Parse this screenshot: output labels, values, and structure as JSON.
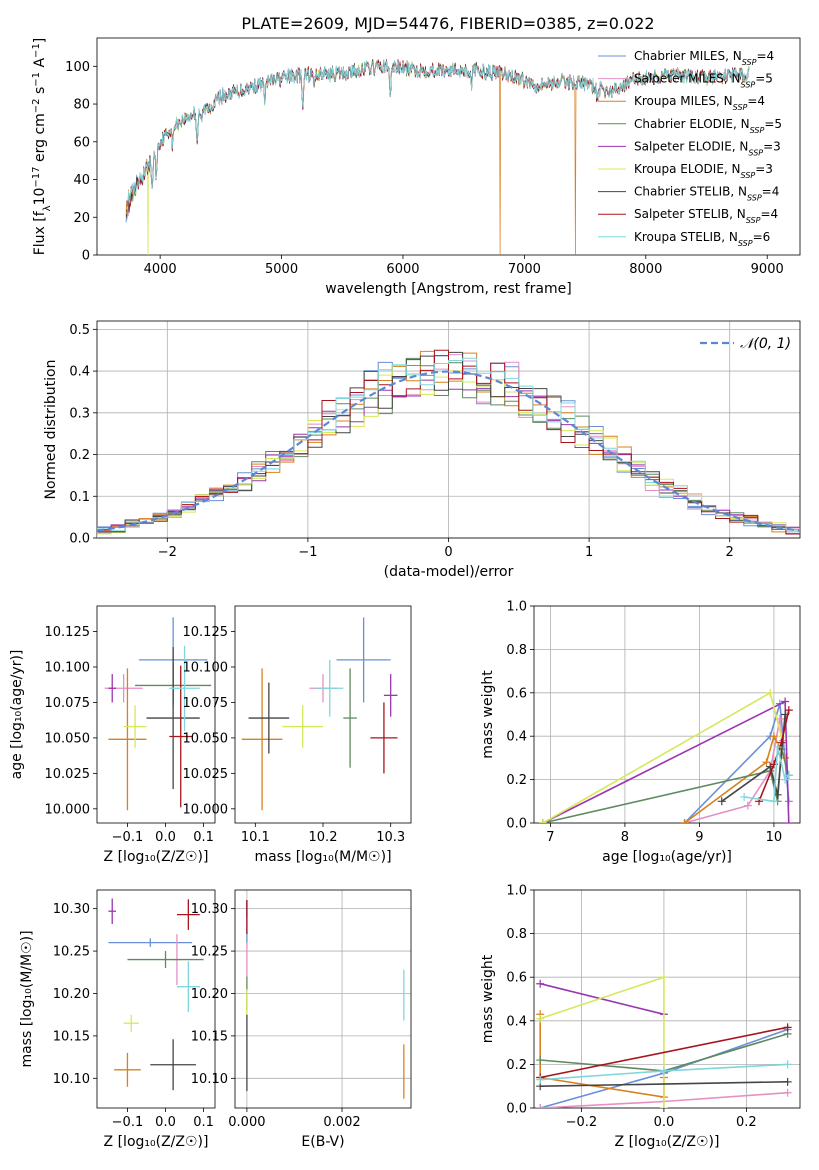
{
  "colors": [
    "#6a8fd8",
    "#e58fc4",
    "#d9801f",
    "#5f8a5f",
    "#9a35b0",
    "#d7e85a",
    "#454545",
    "#a8141c",
    "#7fd6dd"
  ],
  "chart_data": [
    {
      "id": "spectrum",
      "type": "line",
      "title": "PLATE=2609, MJD=54476, FIBERID=0385, z=0.022",
      "xlabel": "wavelength [Angstrom, rest frame]",
      "ylabel_parts": [
        "Flux [f",
        "λ",
        "10",
        "−17",
        " erg cm",
        "−2",
        " s",
        "−1",
        " A",
        "−1",
        "]"
      ],
      "xlim": [
        3480,
        9270
      ],
      "ylim": [
        0,
        115
      ],
      "xticks": [
        "4000",
        "5000",
        "6000",
        "7000",
        "8000",
        "9000"
      ],
      "yticks": [
        "0",
        "20",
        "40",
        "60",
        "80",
        "100"
      ],
      "legend_position": "upper right",
      "series": [
        {
          "name_parts": [
            "Chabrier MILES, N",
            "SSP",
            "=4"
          ]
        },
        {
          "name_parts": [
            "Salpeter MILES, N",
            "SSP",
            "=5"
          ]
        },
        {
          "name_parts": [
            "Kroupa MILES, N",
            "SSP",
            "=4"
          ]
        },
        {
          "name_parts": [
            "Chabrier ELODIE, N",
            "SSP",
            "=5"
          ]
        },
        {
          "name_parts": [
            "Salpeter ELODIE, N",
            "SSP",
            "=3"
          ]
        },
        {
          "name_parts": [
            "Kroupa ELODIE, N",
            "SSP",
            "=3"
          ]
        },
        {
          "name_parts": [
            "Chabrier STELIB, N",
            "SSP",
            "=4"
          ]
        },
        {
          "name_parts": [
            "Salpeter STELIB, N",
            "SSP",
            "=4"
          ]
        },
        {
          "name_parts": [
            "Kroupa STELIB, N",
            "SSP",
            "=6"
          ]
        }
      ],
      "continuum": {
        "x": [
          3720,
          3800,
          3900,
          4000,
          4100,
          4200,
          4300,
          4400,
          4500,
          4700,
          4900,
          5100,
          5300,
          5500,
          5700,
          5900,
          6100,
          6300,
          6500,
          6700,
          6900,
          7100,
          7300,
          7500,
          7700,
          7900,
          8100,
          8300,
          8500,
          8700,
          8850
        ],
        "y": [
          30,
          38,
          48,
          60,
          68,
          72,
          76,
          78,
          84,
          88,
          92,
          95,
          96,
          96,
          99,
          100,
          98,
          98,
          98,
          97,
          95,
          90,
          92,
          91,
          86,
          93,
          95,
          95,
          94,
          95,
          96
        ]
      },
      "absorption_dips": [
        {
          "x": 3934,
          "depth": 15
        },
        {
          "x": 3968,
          "depth": 14
        },
        {
          "x": 4102,
          "depth": 10
        },
        {
          "x": 4305,
          "depth": 15
        },
        {
          "x": 4340,
          "depth": 8
        },
        {
          "x": 4861,
          "depth": 8
        },
        {
          "x": 5175,
          "depth": 18
        },
        {
          "x": 5270,
          "depth": 6
        },
        {
          "x": 5895,
          "depth": 14
        },
        {
          "x": 6563,
          "depth": 7
        },
        {
          "x": 7600,
          "depth": 5
        }
      ],
      "dropouts": [
        {
          "series": 5,
          "x": 3900
        },
        {
          "series": 2,
          "x": 6800
        },
        {
          "series": 2,
          "x": 7420
        }
      ]
    },
    {
      "id": "residuals",
      "type": "line",
      "xlabel": "(data-model)/error",
      "ylabel": "Normed distribution",
      "xlim": [
        -2.5,
        2.5
      ],
      "ylim": [
        0,
        0.52
      ],
      "xticks": [
        "−2",
        "−1",
        "0",
        "1",
        "2"
      ],
      "yticks": [
        "0.0",
        "0.1",
        "0.2",
        "0.3",
        "0.4",
        "0.5"
      ],
      "grid": true,
      "legend_position": "upper right",
      "gaussian_label": "𝒩(0, 1)",
      "bins": {
        "start": -2.5,
        "width": 0.1,
        "count": 50
      }
    },
    {
      "id": "age-vs-z",
      "type": "scatter",
      "xlabel": "Z [log₁₀(Z/Z☉)]",
      "ylabel": "age  [log₁₀(age/yr)]",
      "xlim": [
        -0.18,
        0.13
      ],
      "ylim": [
        9.99,
        10.143
      ],
      "xticks": [
        "−0.1",
        "0.0",
        "0.1"
      ],
      "yticks": [
        "10.000",
        "10.025",
        "10.050",
        "10.075",
        "10.100",
        "10.125"
      ],
      "points": [
        {
          "x": 0.02,
          "y": 10.105,
          "xerr": 0.09,
          "yerr": 0.03
        },
        {
          "x": -0.11,
          "y": 10.085,
          "xerr": 0.05,
          "yerr": 0.01
        },
        {
          "x": -0.1,
          "y": 10.049,
          "xerr": 0.05,
          "yerr": 0.05
        },
        {
          "x": 0.02,
          "y": 10.087,
          "xerr": 0.1,
          "yerr": 0.015
        },
        {
          "x": -0.14,
          "y": 10.085,
          "xerr": 0.01,
          "yerr": 0.01
        },
        {
          "x": -0.08,
          "y": 10.058,
          "xerr": 0.03,
          "yerr": 0.015
        },
        {
          "x": 0.02,
          "y": 10.064,
          "xerr": 0.07,
          "yerr": 0.05
        },
        {
          "x": 0.04,
          "y": 10.051,
          "xerr": 0.03,
          "yerr": 0.05
        },
        {
          "x": 0.05,
          "y": 10.085,
          "xerr": 0.04,
          "yerr": 0.03
        }
      ]
    },
    {
      "id": "age-vs-mass",
      "type": "scatter",
      "xlabel": "mass [log₁₀(M/M☉)]",
      "xlim": [
        10.07,
        10.33
      ],
      "ylim": [
        9.99,
        10.143
      ],
      "xticks": [
        "10.1",
        "10.2",
        "10.3"
      ],
      "yticks": [
        "10.000",
        "10.025",
        "10.050",
        "10.075",
        "10.100",
        "10.125"
      ],
      "points": [
        {
          "x": 10.26,
          "y": 10.105,
          "xerr": 0.04,
          "yerr": 0.03
        },
        {
          "x": 10.2,
          "y": 10.085,
          "xerr": 0.02,
          "yerr": 0.01
        },
        {
          "x": 10.11,
          "y": 10.049,
          "xerr": 0.03,
          "yerr": 0.05
        },
        {
          "x": 10.24,
          "y": 10.064,
          "xerr": 0.01,
          "yerr": 0.035
        },
        {
          "x": 10.3,
          "y": 10.08,
          "xerr": 0.01,
          "yerr": 0.015
        },
        {
          "x": 10.17,
          "y": 10.058,
          "xerr": 0.03,
          "yerr": 0.015
        },
        {
          "x": 10.12,
          "y": 10.064,
          "xerr": 0.03,
          "yerr": 0.025
        },
        {
          "x": 10.29,
          "y": 10.05,
          "xerr": 0.02,
          "yerr": 0.025
        },
        {
          "x": 10.21,
          "y": 10.085,
          "xerr": 0.02,
          "yerr": 0.02
        }
      ]
    },
    {
      "id": "weight-vs-age",
      "type": "line",
      "xlabel": "age  [log₁₀(age/yr)]",
      "ylabel": "mass weight",
      "xlim": [
        6.78,
        10.35
      ],
      "ylim": [
        0,
        1.0
      ],
      "xticks": [
        "7",
        "8",
        "9",
        "10"
      ],
      "yticks": [
        "0.0",
        "0.2",
        "0.4",
        "0.6",
        "0.8",
        "1.0"
      ],
      "grid": true,
      "series": [
        {
          "x": [
            8.8,
            9.95,
            10.08,
            10.2
          ],
          "y": [
            0.0,
            0.4,
            0.55,
            0.1
          ]
        },
        {
          "x": [
            8.8,
            9.65,
            9.95,
            10.08,
            10.12
          ],
          "y": [
            0.0,
            0.08,
            0.24,
            0.48,
            0.38
          ]
        },
        {
          "x": [
            8.8,
            9.9,
            10.0,
            10.15
          ],
          "y": [
            0.0,
            0.28,
            0.4,
            0.3
          ]
        },
        {
          "x": [
            6.9,
            9.95,
            10.05,
            10.1,
            10.2
          ],
          "y": [
            0.0,
            0.24,
            0.1,
            0.34,
            0.22
          ]
        },
        {
          "x": [
            6.9,
            10.15,
            10.2
          ],
          "y": [
            0.0,
            0.56,
            0.0
          ]
        },
        {
          "x": [
            6.9,
            9.95,
            10.1
          ],
          "y": [
            0.0,
            0.6,
            0.4
          ]
        },
        {
          "x": [
            9.3,
            9.95,
            10.05,
            10.15
          ],
          "y": [
            0.1,
            0.26,
            0.13,
            0.5
          ]
        },
        {
          "x": [
            9.8,
            10.0,
            10.1,
            10.2
          ],
          "y": [
            0.1,
            0.27,
            0.37,
            0.52
          ]
        },
        {
          "x": [
            9.6,
            10.0,
            10.05,
            10.15,
            10.2
          ],
          "y": [
            0.12,
            0.1,
            0.35,
            0.2,
            0.22
          ]
        }
      ]
    },
    {
      "id": "mass-vs-z",
      "type": "scatter",
      "xlabel": "Z [log₁₀(Z/Z☉)]",
      "ylabel": "mass [log₁₀(M/M☉)]",
      "xlim": [
        -0.18,
        0.13
      ],
      "ylim": [
        10.065,
        10.322
      ],
      "xticks": [
        "−0.1",
        "0.0",
        "0.1"
      ],
      "yticks": [
        "10.10",
        "10.15",
        "10.20",
        "10.25",
        "10.30"
      ],
      "points": [
        {
          "x": -0.04,
          "y": 10.26,
          "xerr": 0.11,
          "yerr": 0.005
        },
        {
          "x": 0.03,
          "y": 10.24,
          "xerr": 0.01,
          "yerr": 0.03
        },
        {
          "x": -0.1,
          "y": 10.11,
          "xerr": 0.035,
          "yerr": 0.02
        },
        {
          "x": 0.0,
          "y": 10.24,
          "xerr": 0.1,
          "yerr": 0.01
        },
        {
          "x": -0.14,
          "y": 10.297,
          "xerr": 0.01,
          "yerr": 0.015
        },
        {
          "x": -0.09,
          "y": 10.165,
          "xerr": 0.02,
          "yerr": 0.01
        },
        {
          "x": 0.02,
          "y": 10.116,
          "xerr": 0.06,
          "yerr": 0.03
        },
        {
          "x": 0.06,
          "y": 10.293,
          "xerr": 0.03,
          "yerr": 0.018
        },
        {
          "x": 0.06,
          "y": 10.208,
          "xerr": 0.03,
          "yerr": 0.03
        }
      ]
    },
    {
      "id": "mass-vs-ebv",
      "type": "scatter",
      "xlabel": "E(B-V)",
      "xlim": [
        -0.00025,
        0.00345
      ],
      "ylim": [
        10.065,
        10.322
      ],
      "xticks": [
        "0.000",
        "0.002"
      ],
      "yticks": [
        "10.10",
        "10.15",
        "10.20",
        "10.25",
        "10.30"
      ],
      "grid": true,
      "points": [
        {
          "x": 0.0,
          "y": 10.285,
          "xerr": 0,
          "yerr": 0.025
        },
        {
          "x": 0.0,
          "y": 10.24,
          "xerr": 0,
          "yerr": 0.02
        },
        {
          "x": 0.0033,
          "y": 10.108,
          "xerr": 0,
          "yerr": 0.032
        },
        {
          "x": 0.0,
          "y": 10.2,
          "xerr": 0,
          "yerr": 0.02
        },
        {
          "x": 0.0,
          "y": 10.3,
          "xerr": 0,
          "yerr": 0.01
        },
        {
          "x": 0.0,
          "y": 10.19,
          "xerr": 0,
          "yerr": 0.015
        },
        {
          "x": 0.0,
          "y": 10.13,
          "xerr": 0,
          "yerr": 0.045
        },
        {
          "x": 0.0,
          "y": 10.29,
          "xerr": 0,
          "yerr": 0.02
        },
        {
          "x": 0.0033,
          "y": 10.198,
          "xerr": 0,
          "yerr": 0.03
        }
      ]
    },
    {
      "id": "weight-vs-z",
      "type": "line",
      "xlabel": "Z [log₁₀(Z/Z☉)]",
      "ylabel": "mass weight",
      "xlim": [
        -0.315,
        0.33
      ],
      "ylim": [
        0,
        1.0
      ],
      "xticks": [
        "−0.2",
        "0.0",
        "0.2"
      ],
      "yticks": [
        "0.0",
        "0.2",
        "0.4",
        "0.6",
        "0.8",
        "1.0"
      ],
      "grid": true,
      "series": [
        {
          "x": [
            -0.3,
            0.0,
            0.3
          ],
          "y": [
            0.0,
            0.16,
            0.36
          ]
        },
        {
          "x": [
            -0.3,
            0.0,
            0.3
          ],
          "y": [
            0.0,
            0.03,
            0.07
          ]
        },
        {
          "x": [
            -0.3,
            -0.3,
            0.0,
            0.0
          ],
          "y": [
            0.43,
            0.14,
            0.05,
            0.14
          ]
        },
        {
          "x": [
            -0.3,
            0.0,
            0.3
          ],
          "y": [
            0.22,
            0.17,
            0.34
          ]
        },
        {
          "x": [
            -0.3,
            0.0
          ],
          "y": [
            0.57,
            0.43
          ]
        },
        {
          "x": [
            -0.3,
            0.0,
            0.0
          ],
          "y": [
            0.41,
            0.6,
            0.0
          ]
        },
        {
          "x": [
            -0.3,
            0.3
          ],
          "y": [
            0.1,
            0.12
          ]
        },
        {
          "x": [
            -0.3,
            0.3
          ],
          "y": [
            0.14,
            0.37
          ]
        },
        {
          "x": [
            -0.3,
            0.0,
            0.3
          ],
          "y": [
            0.13,
            0.17,
            0.2
          ]
        }
      ]
    }
  ]
}
